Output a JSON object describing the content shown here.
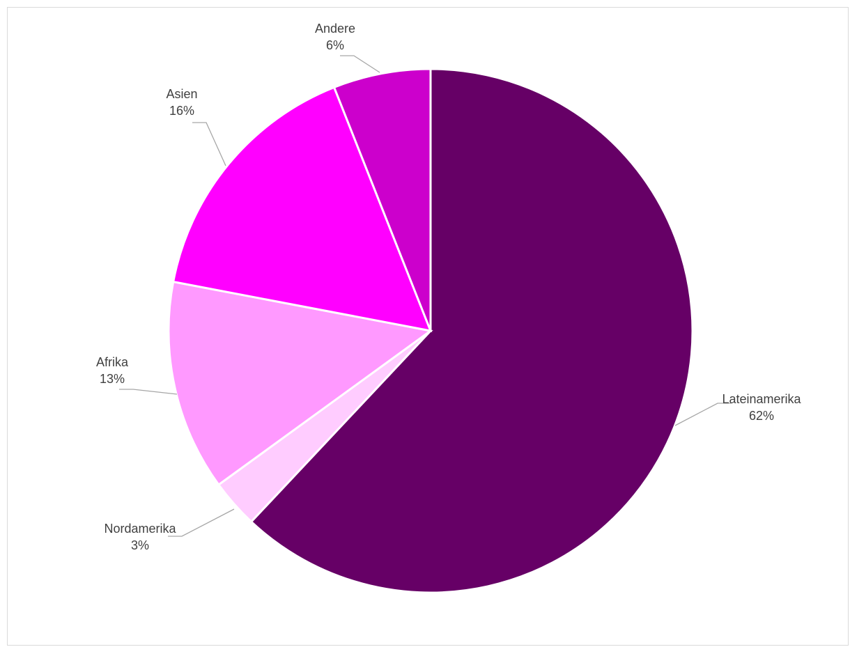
{
  "chart_data": {
    "type": "pie",
    "title": "",
    "start": "12 o'clock, clockwise",
    "slices": [
      {
        "name": "Lateinamerika",
        "value": 62,
        "label": "62%",
        "color": "#660066"
      },
      {
        "name": "Nordamerika",
        "value": 3,
        "label": "3%",
        "color": "#ffccff"
      },
      {
        "name": "Afrika",
        "value": 13,
        "label": "13%",
        "color": "#ff99ff"
      },
      {
        "name": "Asien",
        "value": 16,
        "label": "16%",
        "color": "#ff00ff"
      },
      {
        "name": "Andere",
        "value": 6,
        "label": "6%",
        "color": "#cc00cc"
      }
    ]
  }
}
